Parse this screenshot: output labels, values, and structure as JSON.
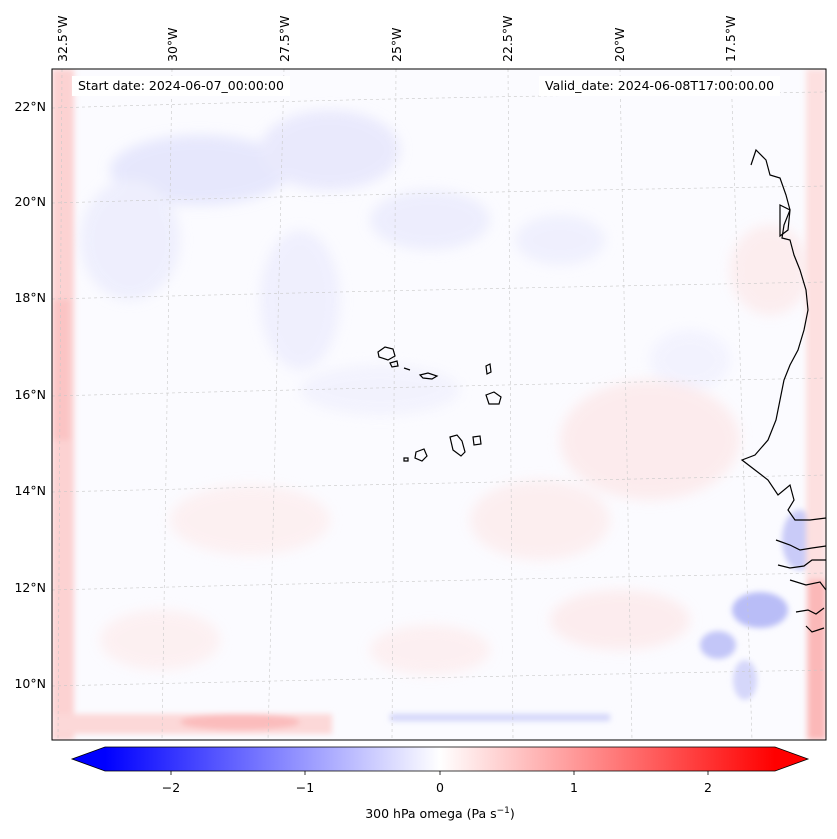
{
  "map": {
    "start_date_label": "Start date: 2024-06-07_00:00:00",
    "valid_date_label": "Valid_date: 2024-06-08T17:00:00.00",
    "longitude_labels": [
      "32.5°W",
      "30°W",
      "27.5°W",
      "25°W",
      "22.5°W",
      "20°W",
      "17.5°W"
    ],
    "latitude_labels": [
      "22°N",
      "20°N",
      "18°N",
      "16°N",
      "14°N",
      "12°N",
      "10°N"
    ],
    "field": "300 hPa omega",
    "colors": {
      "negative": "#0000ff",
      "positive": "#ff0000",
      "neutral": "#ffffff",
      "coastline": "#000000"
    }
  },
  "colorbar": {
    "title_text": "300 hPa omega (Pa s",
    "title_exponent": "−1",
    "title_close": ")",
    "tick_labels": [
      "−2",
      "−1",
      "0",
      "1",
      "2"
    ],
    "range": [
      -2.75,
      2.75
    ],
    "extend": "both"
  }
}
